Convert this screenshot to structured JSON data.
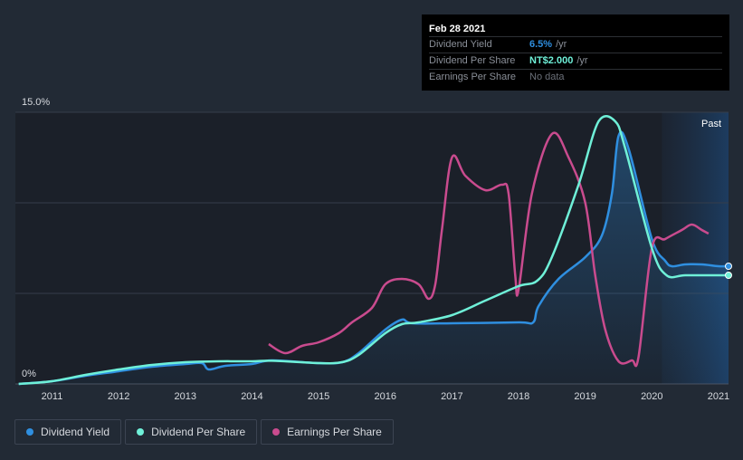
{
  "tooltip": {
    "date": "Feb 28 2021",
    "rows": [
      {
        "name": "Dividend Yield",
        "value": "6.5%",
        "unit": "/yr",
        "color": "#2f8fe0"
      },
      {
        "name": "Dividend Per Share",
        "value": "NT$2.000",
        "unit": "/yr",
        "color": "#6ff0d8"
      },
      {
        "name": "Earnings Per Share",
        "value": "No data",
        "unit": "",
        "color": "#6b7079"
      }
    ]
  },
  "past_label": "Past",
  "legend": [
    {
      "label": "Dividend Yield",
      "color": "#2f8fe0"
    },
    {
      "label": "Dividend Per Share",
      "color": "#6ff0d8"
    },
    {
      "label": "Earnings Per Share",
      "color": "#c94b8e"
    }
  ],
  "chart_data": {
    "type": "line",
    "title": "",
    "xlabel": "",
    "ylabel": "",
    "ylim": [
      0,
      15
    ],
    "y_tick_labels": [
      "0%",
      "15.0%"
    ],
    "x_tick_labels": [
      "2011",
      "2012",
      "2013",
      "2014",
      "2015",
      "2016",
      "2017",
      "2018",
      "2019",
      "2020",
      "2021"
    ],
    "xlim": [
      2010.45,
      2021.15
    ],
    "grid": true,
    "past_region_start": 2020.15,
    "series": [
      {
        "name": "Dividend Yield",
        "color": "#2f8fe0",
        "filled": true,
        "points": [
          [
            2010.5,
            0
          ],
          [
            2011.0,
            0.15
          ],
          [
            2011.5,
            0.45
          ],
          [
            2012.0,
            0.7
          ],
          [
            2012.5,
            0.95
          ],
          [
            2013.0,
            1.1
          ],
          [
            2013.25,
            1.15
          ],
          [
            2013.35,
            0.8
          ],
          [
            2013.6,
            1.0
          ],
          [
            2014.0,
            1.1
          ],
          [
            2014.3,
            1.3
          ],
          [
            2015.0,
            1.15
          ],
          [
            2015.35,
            1.2
          ],
          [
            2015.6,
            1.7
          ],
          [
            2016.0,
            3.0
          ],
          [
            2016.25,
            3.55
          ],
          [
            2016.4,
            3.35
          ],
          [
            2017.0,
            3.35
          ],
          [
            2018.0,
            3.4
          ],
          [
            2018.22,
            3.4
          ],
          [
            2018.3,
            4.3
          ],
          [
            2018.6,
            5.8
          ],
          [
            2019.0,
            7.0
          ],
          [
            2019.25,
            8.2
          ],
          [
            2019.4,
            10.5
          ],
          [
            2019.5,
            13.7
          ],
          [
            2019.65,
            13.0
          ],
          [
            2020.0,
            8.0
          ],
          [
            2020.2,
            6.8
          ],
          [
            2020.3,
            6.5
          ],
          [
            2020.5,
            6.6
          ],
          [
            2020.75,
            6.6
          ],
          [
            2021.0,
            6.5
          ],
          [
            2021.15,
            6.5
          ]
        ]
      },
      {
        "name": "Dividend Per Share",
        "color": "#6ff0d8",
        "points": [
          [
            2010.5,
            0
          ],
          [
            2011.0,
            0.15
          ],
          [
            2011.5,
            0.5
          ],
          [
            2012.0,
            0.8
          ],
          [
            2012.5,
            1.05
          ],
          [
            2013.0,
            1.2
          ],
          [
            2013.5,
            1.25
          ],
          [
            2014.0,
            1.25
          ],
          [
            2014.3,
            1.28
          ],
          [
            2015.0,
            1.15
          ],
          [
            2015.35,
            1.2
          ],
          [
            2015.6,
            1.6
          ],
          [
            2016.0,
            2.8
          ],
          [
            2016.25,
            3.3
          ],
          [
            2016.5,
            3.4
          ],
          [
            2017.0,
            3.8
          ],
          [
            2017.5,
            4.6
          ],
          [
            2018.0,
            5.4
          ],
          [
            2018.28,
            5.7
          ],
          [
            2018.5,
            7.0
          ],
          [
            2018.9,
            11.0
          ],
          [
            2019.2,
            14.5
          ],
          [
            2019.45,
            14.5
          ],
          [
            2019.6,
            13.0
          ],
          [
            2020.0,
            7.5
          ],
          [
            2020.22,
            6.0
          ],
          [
            2020.5,
            6.0
          ],
          [
            2021.0,
            6.0
          ],
          [
            2021.15,
            6.0
          ]
        ]
      },
      {
        "name": "Earnings Per Share",
        "color": "#c94b8e",
        "points": [
          [
            2014.25,
            2.2
          ],
          [
            2014.5,
            1.7
          ],
          [
            2014.75,
            2.1
          ],
          [
            2015.0,
            2.3
          ],
          [
            2015.3,
            2.8
          ],
          [
            2015.5,
            3.4
          ],
          [
            2015.8,
            4.2
          ],
          [
            2016.0,
            5.5
          ],
          [
            2016.25,
            5.8
          ],
          [
            2016.5,
            5.5
          ],
          [
            2016.65,
            4.7
          ],
          [
            2016.75,
            5.5
          ],
          [
            2016.85,
            8.5
          ],
          [
            2017.0,
            12.5
          ],
          [
            2017.2,
            11.5
          ],
          [
            2017.5,
            10.7
          ],
          [
            2017.75,
            11.0
          ],
          [
            2017.85,
            10.5
          ],
          [
            2017.95,
            6.0
          ],
          [
            2018.0,
            5.2
          ],
          [
            2018.2,
            10.5
          ],
          [
            2018.5,
            13.8
          ],
          [
            2018.75,
            12.5
          ],
          [
            2019.0,
            10.0
          ],
          [
            2019.15,
            6.0
          ],
          [
            2019.3,
            3.0
          ],
          [
            2019.5,
            1.25
          ],
          [
            2019.7,
            1.3
          ],
          [
            2019.8,
            1.5
          ],
          [
            2020.0,
            7.5
          ],
          [
            2020.2,
            8.0
          ],
          [
            2020.45,
            8.5
          ],
          [
            2020.6,
            8.8
          ],
          [
            2020.75,
            8.5
          ],
          [
            2020.85,
            8.3
          ]
        ]
      }
    ]
  }
}
